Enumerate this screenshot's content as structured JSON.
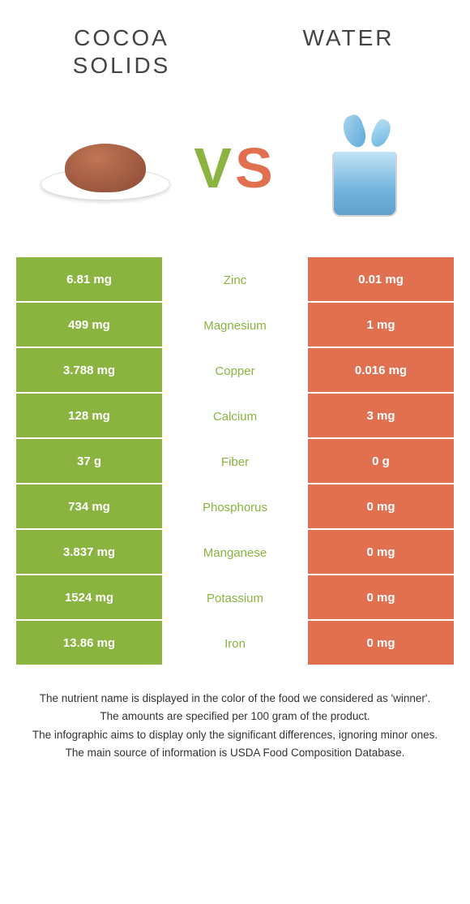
{
  "titles": {
    "left": "COCOA SOLIDS",
    "right": "WATER"
  },
  "vs": {
    "v": "V",
    "s": "S"
  },
  "colors": {
    "left": "#8ab33f",
    "right": "#e07050",
    "leftText": "#8ab33f",
    "rightText": "#e07050"
  },
  "rows": [
    {
      "left": "6.81 mg",
      "nutrient": "Zinc",
      "right": "0.01 mg",
      "winnerColor": "#8ab33f"
    },
    {
      "left": "499 mg",
      "nutrient": "Magnesium",
      "right": "1 mg",
      "winnerColor": "#8ab33f"
    },
    {
      "left": "3.788 mg",
      "nutrient": "Copper",
      "right": "0.016 mg",
      "winnerColor": "#8ab33f"
    },
    {
      "left": "128 mg",
      "nutrient": "Calcium",
      "right": "3 mg",
      "winnerColor": "#8ab33f"
    },
    {
      "left": "37 g",
      "nutrient": "Fiber",
      "right": "0 g",
      "winnerColor": "#8ab33f"
    },
    {
      "left": "734 mg",
      "nutrient": "Phosphorus",
      "right": "0 mg",
      "winnerColor": "#8ab33f"
    },
    {
      "left": "3.837 mg",
      "nutrient": "Manganese",
      "right": "0 mg",
      "winnerColor": "#8ab33f"
    },
    {
      "left": "1524 mg",
      "nutrient": "Potassium",
      "right": "0 mg",
      "winnerColor": "#8ab33f"
    },
    {
      "left": "13.86 mg",
      "nutrient": "Iron",
      "right": "0 mg",
      "winnerColor": "#8ab33f"
    }
  ],
  "footer": [
    "The nutrient name is displayed in the color of the food we considered as 'winner'.",
    "The amounts are specified per 100 gram of the product.",
    "The infographic aims to display only the significant differences, ignoring minor ones.",
    "The main source of information is USDA Food Composition Database."
  ]
}
